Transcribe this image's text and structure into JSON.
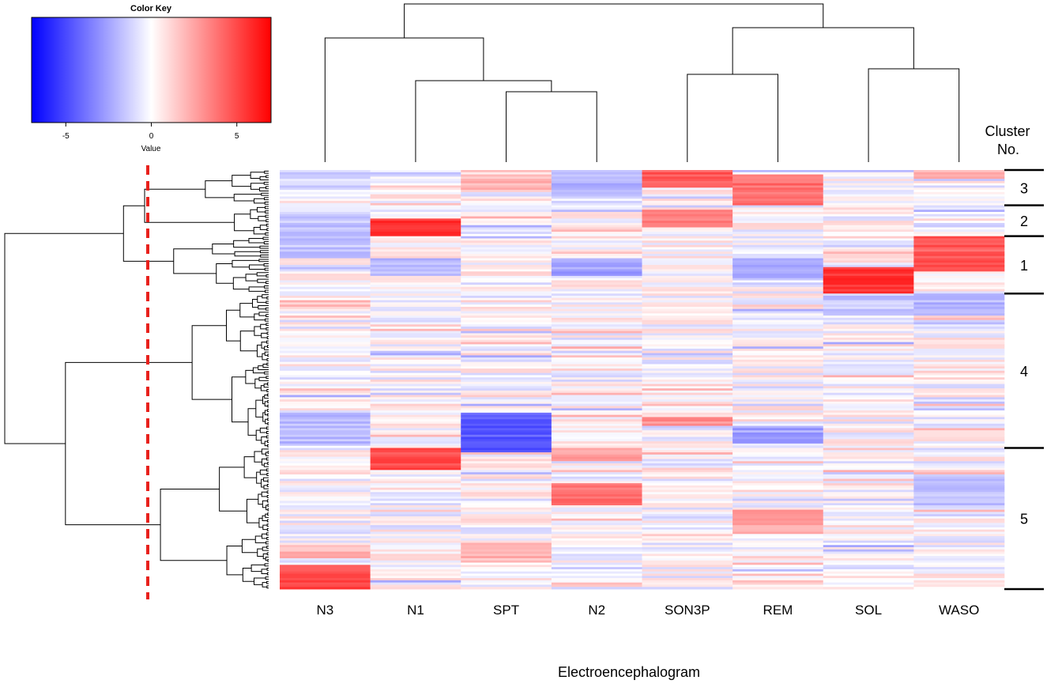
{
  "chart_data": {
    "type": "heatmap",
    "xlabel": "Electroencephalogram",
    "columns": [
      "N3",
      "N1",
      "SPT",
      "N2",
      "SON3P",
      "REM",
      "SOL",
      "WASO"
    ],
    "color_key": {
      "title": "Color Key",
      "axis_label": "Value",
      "ticks": [
        -5,
        0,
        5
      ],
      "range": [
        -7,
        7
      ],
      "colors": {
        "low": "#0000ff",
        "mid": "#ffffff",
        "high": "#ff0000"
      }
    },
    "cluster_header": [
      "Cluster",
      "No."
    ],
    "clusters": [
      {
        "label": "3",
        "rows": [
          0,
          16
        ]
      },
      {
        "label": "2",
        "rows": [
          16,
          30
        ]
      },
      {
        "label": "1",
        "rows": [
          30,
          56
        ]
      },
      {
        "label": "4",
        "rows": [
          56,
          126
        ]
      },
      {
        "label": "5",
        "rows": [
          126,
          190
        ]
      }
    ],
    "row_count": 190,
    "blocks": [
      {
        "col": "N3",
        "rows": [
          0,
          8
        ],
        "value": -1.2
      },
      {
        "col": "N3",
        "rows": [
          20,
          40
        ],
        "value": -1.5
      },
      {
        "col": "N3",
        "rows": [
          110,
          125
        ],
        "value": -1.8
      },
      {
        "col": "N3",
        "rows": [
          170,
          176
        ],
        "value": 2.0
      },
      {
        "col": "N3",
        "rows": [
          179,
          190
        ],
        "value": 5.0
      },
      {
        "col": "N1",
        "rows": [
          22,
          30
        ],
        "value": 5.5
      },
      {
        "col": "N1",
        "rows": [
          40,
          48
        ],
        "value": -2.0
      },
      {
        "col": "N1",
        "rows": [
          126,
          136
        ],
        "value": 5.0
      },
      {
        "col": "SPT",
        "rows": [
          2,
          10
        ],
        "value": 2.0
      },
      {
        "col": "SPT",
        "rows": [
          110,
          128
        ],
        "value": -4.5
      },
      {
        "col": "SPT",
        "rows": [
          170,
          178
        ],
        "value": 2.0
      },
      {
        "col": "N2",
        "rows": [
          0,
          12
        ],
        "value": -2.0
      },
      {
        "col": "N2",
        "rows": [
          40,
          48
        ],
        "value": -2.5
      },
      {
        "col": "N2",
        "rows": [
          142,
          152
        ],
        "value": 4.0
      },
      {
        "col": "N2",
        "rows": [
          126,
          132
        ],
        "value": 2.5
      },
      {
        "col": "SON3P",
        "rows": [
          0,
          8
        ],
        "value": 4.5
      },
      {
        "col": "SON3P",
        "rows": [
          18,
          26
        ],
        "value": 3.5
      },
      {
        "col": "SON3P",
        "rows": [
          112,
          116
        ],
        "value": 3.0
      },
      {
        "col": "REM",
        "rows": [
          2,
          16
        ],
        "value": 4.0
      },
      {
        "col": "REM",
        "rows": [
          40,
          50
        ],
        "value": -2.0
      },
      {
        "col": "REM",
        "rows": [
          116,
          124
        ],
        "value": -2.5
      },
      {
        "col": "REM",
        "rows": [
          154,
          164
        ],
        "value": 2.5
      },
      {
        "col": "SOL",
        "rows": [
          44,
          56
        ],
        "value": 5.5
      },
      {
        "col": "SOL",
        "rows": [
          56,
          66
        ],
        "value": -1.5
      },
      {
        "col": "WASO",
        "rows": [
          0,
          4
        ],
        "value": 2.0
      },
      {
        "col": "WASO",
        "rows": [
          30,
          46
        ],
        "value": 4.5
      },
      {
        "col": "WASO",
        "rows": [
          56,
          66
        ],
        "value": -2.0
      },
      {
        "col": "WASO",
        "rows": [
          138,
          152
        ],
        "value": -1.5
      }
    ]
  }
}
